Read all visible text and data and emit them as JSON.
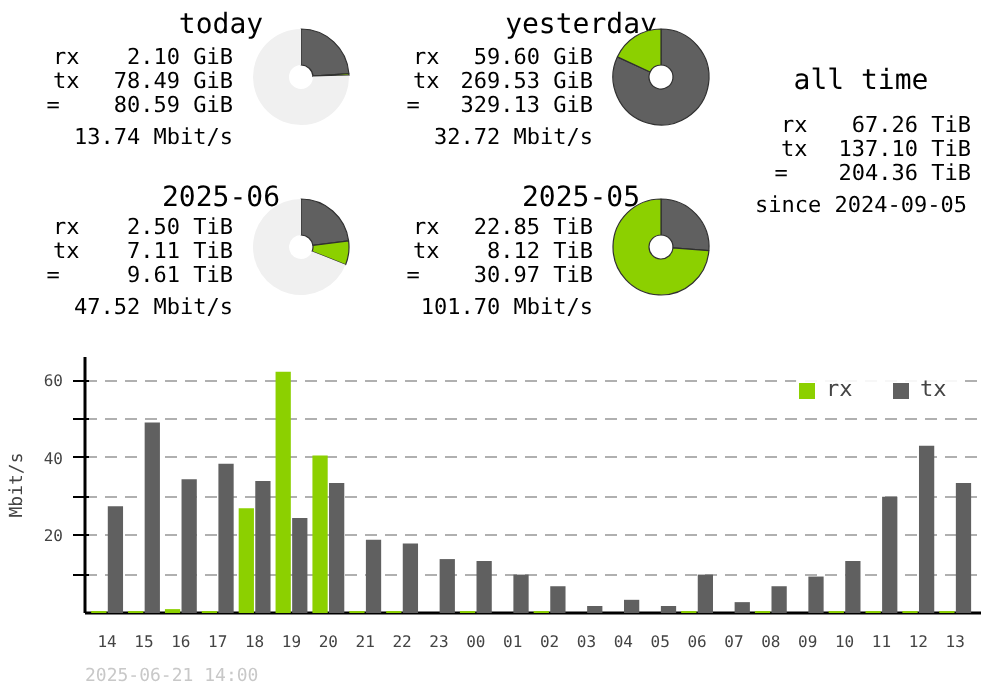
{
  "chart_data": [
    {
      "type": "donut",
      "title": "today",
      "categories": [
        null,
        null,
        null
      ],
      "values": [
        23.85,
        0.64,
        75.51
      ],
      "colors": [
        "#606060",
        "#8cd000",
        "#f0f0f0"
      ],
      "annotations": [
        "rx",
        "2.10 GiB",
        "tx",
        "78.49 GiB",
        "=",
        "80.59 GiB",
        "13.74 Mbit/s"
      ]
    },
    {
      "type": "donut",
      "title": "yesterday",
      "categories": [
        null,
        null
      ],
      "values": [
        81.89,
        18.11
      ],
      "colors": [
        "#606060",
        "#8cd000"
      ],
      "annotations": [
        "rx",
        "59.60 GiB",
        "tx",
        "269.53 GiB",
        "=",
        "329.13 GiB",
        "32.72 Mbit/s"
      ]
    },
    {
      "type": "other",
      "title": "all time",
      "annotations": [
        "rx",
        "67.26 TiB",
        "tx",
        "137.10 TiB",
        "=",
        "204.36 TiB",
        "since 2024-09-05"
      ]
    },
    {
      "type": "donut",
      "title": "2025-06",
      "categories": [
        null,
        null,
        null
      ],
      "values": [
        22.96,
        8.07,
        68.97
      ],
      "colors": [
        "#606060",
        "#8cd000",
        "#f0f0f0"
      ],
      "annotations": [
        "rx",
        "2.50 TiB",
        "tx",
        "7.11 TiB",
        "=",
        "9.61 TiB",
        "47.52 Mbit/s"
      ]
    },
    {
      "type": "donut",
      "title": "2025-05",
      "categories": [
        null,
        null
      ],
      "values": [
        26.22,
        73.78
      ],
      "colors": [
        "#606060",
        "#8cd000"
      ],
      "annotations": [
        "rx",
        "22.85 TiB",
        "tx",
        "8.12 TiB",
        "=",
        "30.97 TiB",
        "101.70 Mbit/s"
      ]
    },
    {
      "type": "bar",
      "ylabel": "Mbit/s",
      "categories": [
        "14",
        "15",
        "16",
        "17",
        "18",
        "19",
        "20",
        "21",
        "22",
        "23",
        "00",
        "01",
        "02",
        "03",
        "04",
        "05",
        "06",
        "07",
        "08",
        "09",
        "10",
        "11",
        "12",
        "13"
      ],
      "series": [
        {
          "name": "rx",
          "color": "#8cd000",
          "values": [
            0.5,
            0.5,
            1.0,
            0.5,
            27.0,
            62.2,
            40.6,
            0.5,
            0.5,
            0,
            0.5,
            0,
            0.5,
            0,
            0,
            0,
            0.5,
            0,
            0.5,
            0,
            0.5,
            0.5,
            0.5,
            0.5
          ]
        },
        {
          "name": "tx",
          "color": "#606060",
          "values": [
            27.5,
            49.1,
            34.5,
            38.5,
            34.0,
            24.5,
            33.5,
            18.9,
            17.9,
            13.9,
            13.4,
            9.9,
            6.9,
            1.8,
            3.4,
            1.8,
            9.9,
            2.8,
            6.9,
            9.4,
            13.4,
            30.0,
            43.1,
            33.5
          ]
        }
      ],
      "ylim": [
        0,
        66
      ],
      "yticks": [
        {
          "value": 10,
          "label": null
        },
        20,
        {
          "value": 30,
          "label": null
        },
        40,
        {
          "value": 50,
          "label": null
        },
        60
      ],
      "grid": "y",
      "legend": "top right",
      "annotations": [
        "2025-06-21 14:00"
      ]
    }
  ]
}
